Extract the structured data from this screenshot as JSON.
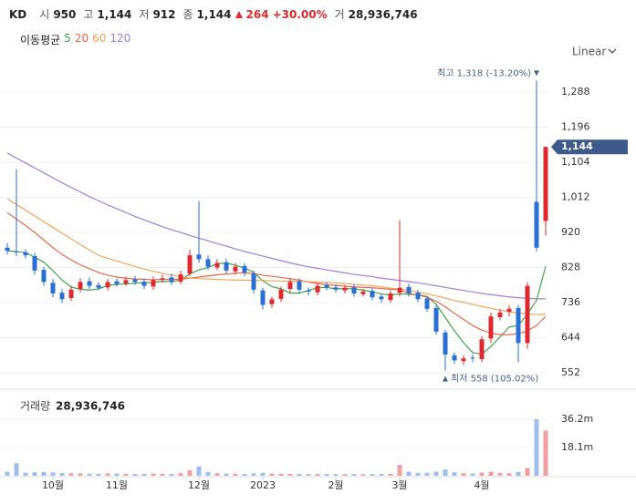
{
  "chart_data": {
    "type": "candlestick",
    "header": {
      "symbol": "KD",
      "items": [
        {
          "label": "시",
          "value": "950"
        },
        {
          "label": "고",
          "value": "1,144"
        },
        {
          "label": "저",
          "value": "912"
        },
        {
          "label": "종",
          "value": "1,144"
        }
      ],
      "change": "264",
      "change_pct": "+30.00%",
      "volume_label": "거",
      "volume": "28,936,746"
    },
    "ma_label": "이동평균",
    "scale_mode": "Linear",
    "max_annotation": "최고 1,318 (-13.20%)",
    "min_annotation": "최저 558 (105.02%)",
    "last_price_label": "1,144",
    "volume_title": "거래량",
    "volume_value": "28,936,746",
    "up_color": "#e0282e",
    "down_color": "#2a6fd6",
    "categories": [
      null,
      null,
      null,
      null,
      null,
      "10월",
      null,
      null,
      null,
      null,
      null,
      null,
      "11월",
      null,
      null,
      null,
      null,
      null,
      null,
      null,
      null,
      "12월",
      null,
      null,
      null,
      null,
      null,
      null,
      "2023",
      null,
      null,
      null,
      null,
      null,
      null,
      null,
      "2월",
      null,
      null,
      null,
      null,
      null,
      null,
      "3월",
      null,
      null,
      null,
      null,
      null,
      null,
      null,
      null,
      "4월",
      null,
      null,
      null,
      null,
      null,
      null,
      null
    ],
    "open": [
      880,
      870,
      868,
      858,
      822,
      788,
      762,
      748,
      772,
      792,
      782,
      776,
      792,
      786,
      797,
      791,
      778,
      796,
      802,
      791,
      812,
      862,
      850,
      828,
      842,
      818,
      832,
      812,
      768,
      732,
      746,
      772,
      792,
      768,
      763,
      782,
      776,
      768,
      776,
      758,
      767,
      752,
      743,
      762,
      777,
      762,
      747,
      722,
      658,
      598,
      583,
      592,
      588,
      642,
      698,
      712,
      722,
      630,
      1000,
      950
    ],
    "high": [
      892,
      1086,
      876,
      866,
      830,
      798,
      772,
      780,
      800,
      802,
      790,
      798,
      800,
      804,
      806,
      800,
      805,
      810,
      812,
      820,
      875,
      1002,
      860,
      850,
      852,
      840,
      840,
      820,
      775,
      752,
      778,
      800,
      800,
      776,
      788,
      790,
      784,
      782,
      784,
      772,
      774,
      760,
      768,
      951,
      786,
      770,
      752,
      728,
      665,
      605,
      598,
      600,
      648,
      710,
      720,
      730,
      730,
      790,
      1318,
      1144
    ],
    "low": [
      862,
      858,
      852,
      810,
      780,
      750,
      735,
      740,
      762,
      772,
      768,
      768,
      778,
      780,
      782,
      772,
      770,
      788,
      782,
      784,
      805,
      840,
      822,
      820,
      812,
      810,
      805,
      760,
      718,
      722,
      738,
      762,
      762,
      755,
      755,
      768,
      762,
      760,
      752,
      752,
      742,
      735,
      736,
      752,
      752,
      738,
      712,
      652,
      558,
      575,
      572,
      580,
      580,
      630,
      690,
      700,
      580,
      615,
      870,
      912
    ],
    "close": [
      872,
      868,
      860,
      820,
      790,
      760,
      745,
      770,
      790,
      780,
      775,
      790,
      785,
      795,
      790,
      780,
      795,
      800,
      790,
      810,
      860,
      850,
      830,
      840,
      820,
      830,
      815,
      770,
      730,
      745,
      770,
      790,
      770,
      765,
      780,
      775,
      770,
      775,
      760,
      765,
      750,
      745,
      760,
      775,
      760,
      745,
      720,
      660,
      600,
      585,
      590,
      590,
      640,
      700,
      710,
      720,
      630,
      780,
      880,
      1144
    ],
    "volume": [
      2500000,
      8000000,
      2000000,
      2200000,
      2400000,
      2100000,
      1800000,
      1600000,
      1500000,
      1400000,
      1300000,
      1500000,
      1400000,
      1300000,
      1200000,
      1300000,
      1400000,
      1300000,
      1200000,
      1600000,
      3500000,
      6000000,
      2400000,
      1600000,
      1400000,
      1300000,
      1200000,
      1500000,
      1800000,
      1400000,
      1300000,
      1200000,
      1200000,
      1100000,
      1100000,
      1200000,
      1100000,
      1000000,
      1100000,
      1000000,
      1100000,
      1200000,
      1300000,
      7000000,
      2500000,
      1800000,
      1900000,
      2600000,
      4000000,
      2200000,
      1600000,
      1500000,
      2000000,
      2600000,
      1800000,
      1600000,
      2400000,
      5000000,
      36200000,
      28936746
    ],
    "ma": [
      {
        "name": "5",
        "color": "#3fa34d",
        "values": [
          872,
          870,
          867,
          855,
          842,
          820,
          795,
          777,
          771,
          769,
          772,
          781,
          784,
          785,
          787,
          788,
          789,
          792,
          791,
          795,
          811,
          822,
          828,
          838,
          840,
          834,
          827,
          815,
          793,
          778,
          772,
          761,
          761,
          768,
          775,
          776,
          772,
          773,
          772,
          769,
          764,
          759,
          756,
          759,
          758,
          757,
          752,
          732,
          697,
          662,
          631,
          605,
          601,
          621,
          646,
          672,
          676,
          706,
          742,
          831
        ]
      },
      {
        "name": "20",
        "color": "#e8684a",
        "values": [
          972,
          955,
          938,
          920,
          900,
          880,
          862,
          848,
          835,
          825,
          815,
          808,
          803,
          800,
          798,
          797,
          796,
          797,
          797,
          798,
          800,
          803,
          806,
          809,
          811,
          813,
          814,
          812,
          808,
          805,
          802,
          799,
          795,
          790,
          786,
          783,
          781,
          779,
          777,
          776,
          775,
          773,
          771,
          770,
          760,
          756,
          750,
          740,
          725,
          708,
          692,
          676,
          664,
          656,
          652,
          652,
          655,
          662,
          676,
          700
        ]
      },
      {
        "name": "60",
        "color": "#f5a35c",
        "values": [
          1008,
          993,
          978,
          963,
          948,
          933,
          918,
          903,
          888,
          874,
          860,
          852,
          845,
          838,
          831,
          824,
          818,
          813,
          808,
          804,
          800,
          799,
          798,
          797,
          796,
          795,
          795,
          794,
          794,
          793,
          793,
          792,
          792,
          791,
          790,
          789,
          788,
          786,
          784,
          782,
          780,
          777,
          774,
          771,
          768,
          764,
          759,
          754,
          748,
          742,
          737,
          731,
          726,
          721,
          716,
          712,
          709,
          706,
          705,
          706
        ]
      },
      {
        "name": "120",
        "color": "#a57adb",
        "values": [
          1128,
          1115,
          1102,
          1089,
          1076,
          1063,
          1050,
          1038,
          1026,
          1014,
          1003,
          992,
          982,
          972,
          962,
          953,
          944,
          935,
          927,
          920,
          912,
          905,
          898,
          891,
          884,
          877,
          870,
          864,
          858,
          852,
          846,
          840,
          835,
          830,
          826,
          822,
          818,
          814,
          810,
          807,
          804,
          800,
          797,
          794,
          791,
          788,
          784,
          780,
          776,
          772,
          768,
          764,
          760,
          757,
          754,
          751,
          749,
          747,
          746,
          746
        ]
      }
    ],
    "ylim": [
      526,
      1326
    ],
    "yticks": [
      552,
      644,
      736,
      828,
      920,
      {
        "value": 1012,
        "label": "1,012"
      },
      {
        "value": 1104,
        "label": "1,104"
      },
      {
        "value": 1196,
        "label": "1,196"
      },
      {
        "value": 1288,
        "label": "1,288"
      }
    ],
    "volume_ylim": [
      0,
      52500000
    ],
    "volume_yticks": [
      {
        "value": 18100000,
        "label": "18.1m"
      },
      {
        "value": 36200000,
        "label": "36.2m"
      }
    ],
    "grid": true
  }
}
